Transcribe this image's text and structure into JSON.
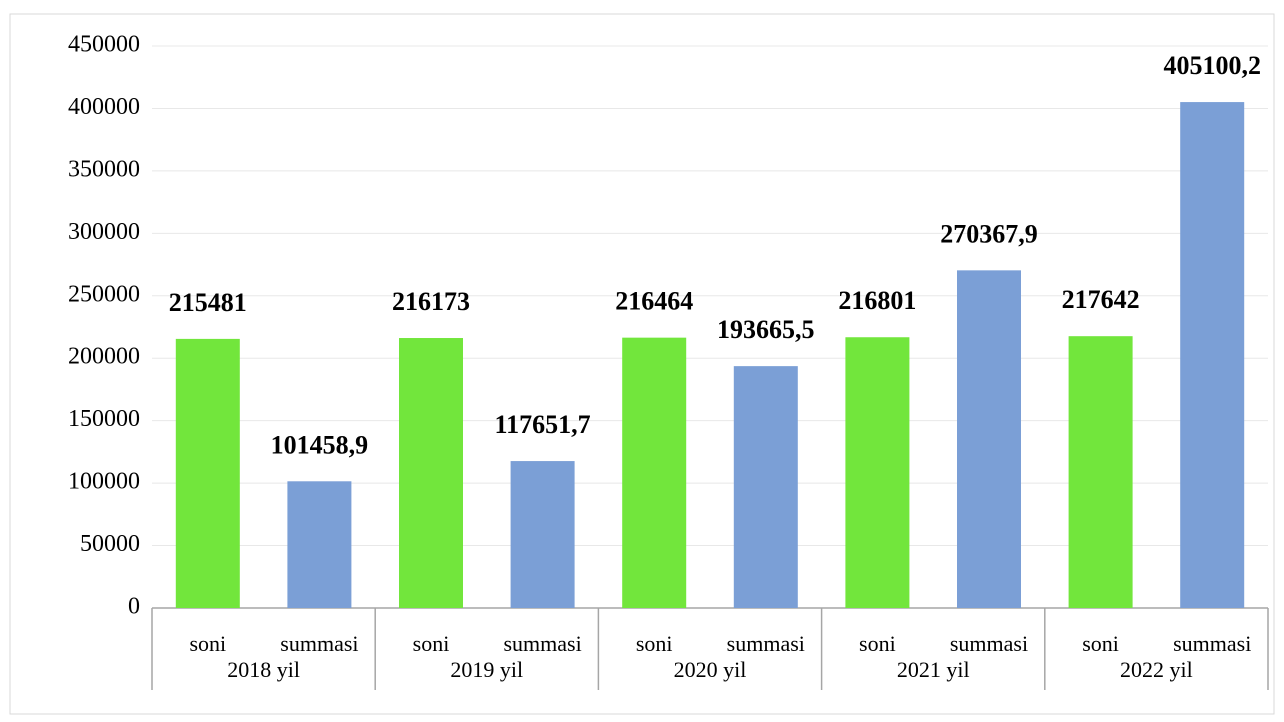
{
  "chart_data": {
    "type": "bar",
    "groups": [
      "2018 yil",
      "2019 yil",
      "2020 yil",
      "2021 yil",
      "2022 yil"
    ],
    "series": [
      {
        "name": "soni",
        "color": "#72e63c",
        "values": [
          215481,
          216173,
          216464,
          216801,
          217642
        ]
      },
      {
        "name": "summasi",
        "color": "#7b9fd6",
        "values": [
          101458.9,
          117651.7,
          193665.5,
          270367.9,
          405100.2
        ],
        "value_labels": [
          "101458,9",
          "117651,7",
          "193665,5",
          "270367,9",
          "405100,2"
        ]
      }
    ],
    "ylim": [
      0,
      450000
    ],
    "yticks": [
      0,
      50000,
      100000,
      150000,
      200000,
      250000,
      300000,
      350000,
      400000,
      450000
    ],
    "grid": true
  }
}
